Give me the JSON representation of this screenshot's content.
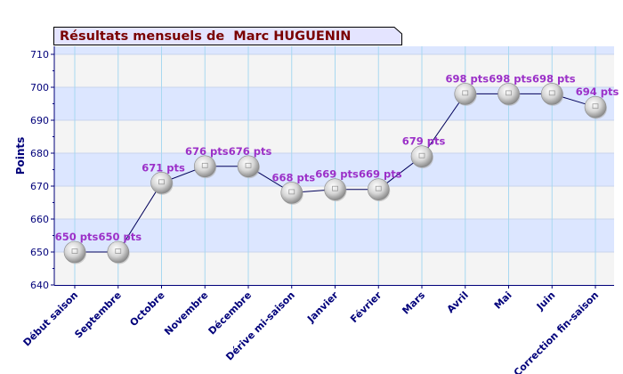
{
  "chart_data": {
    "type": "line",
    "title": "Résultats mensuels de  Marc HUGUENIN",
    "ylabel": "Points",
    "xlabel": "",
    "ylim": [
      640,
      710
    ],
    "yticks": [
      640,
      650,
      660,
      670,
      680,
      690,
      700,
      710
    ],
    "categories": [
      "Début saison",
      "Septembre",
      "Octobre",
      "Novembre",
      "Décembre",
      "Dérive mi-saison",
      "Janvier",
      "Février",
      "Mars",
      "Avril",
      "Mai",
      "Juin",
      "Correction fin-saison"
    ],
    "values": [
      650,
      650,
      671,
      676,
      676,
      668,
      669,
      669,
      679,
      698,
      698,
      698,
      694
    ],
    "data_labels": [
      "650 pts",
      "650 pts",
      "671 pts",
      "676 pts",
      "676 pts",
      "668 pts",
      "669 pts",
      "669 pts",
      "679 pts",
      "698 pts",
      "698 pts",
      "698 pts",
      "694 pts"
    ],
    "grid": true,
    "colors": {
      "line": "#00005a",
      "data_label": "#9b30c8",
      "axis_text": "#00007a",
      "band_light": "#f4f4f4",
      "band_blue": "#dce6ff",
      "grid_vertical": "#a8d8f0",
      "title_text": "#7a0000",
      "title_bg": "#e4e4ff"
    }
  }
}
